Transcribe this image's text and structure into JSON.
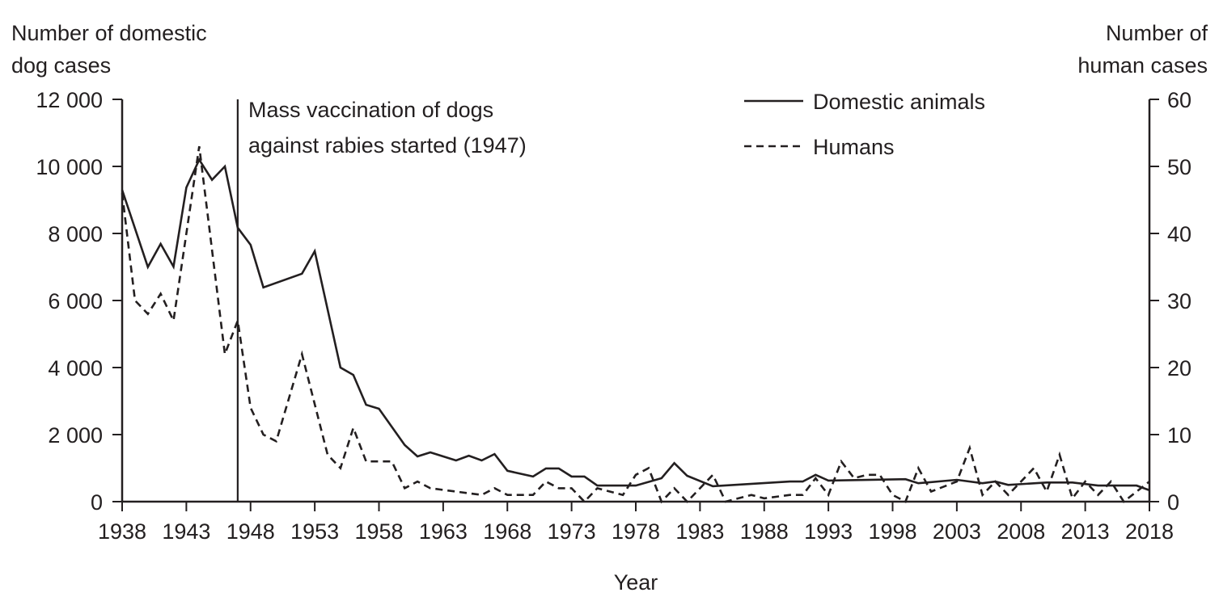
{
  "chart_data": {
    "type": "line",
    "xlabel": "Year",
    "ylabel_left": [
      "Number of domestic",
      "dog cases"
    ],
    "ylabel_right": [
      "Number of",
      "human cases"
    ],
    "xlim": [
      1938,
      2018
    ],
    "ylim_left": [
      0,
      12000
    ],
    "ylim_right": [
      0,
      60
    ],
    "x_ticks": [
      "1938",
      "1943",
      "1948",
      "1953",
      "1958",
      "1963",
      "1968",
      "1973",
      "1978",
      "1983",
      "1988",
      "1993",
      "1998",
      "2003",
      "2008",
      "2013",
      "2018"
    ],
    "y_ticks_left": [
      "0",
      "2 000",
      "4 000",
      "6 000",
      "8 000",
      "10 000",
      "12 000"
    ],
    "y_ticks_right": [
      "0",
      "10",
      "20",
      "30",
      "40",
      "50",
      "60"
    ],
    "grid": false,
    "legend_position": "top-right",
    "colors": {
      "line": "#231f20"
    },
    "annotation": {
      "x": 1947,
      "text": [
        "Mass vaccination of dogs",
        "against rabies started (1947)"
      ]
    },
    "series": [
      {
        "name": "Domestic animals",
        "axis": "left",
        "style": "solid",
        "points": [
          [
            1938,
            9300
          ],
          [
            1940,
            7000
          ],
          [
            1941,
            7690
          ],
          [
            1942,
            7010
          ],
          [
            1943,
            9370
          ],
          [
            1944,
            10200
          ],
          [
            1945,
            9600
          ],
          [
            1946,
            10000
          ],
          [
            1947,
            8170
          ],
          [
            1948,
            7660
          ],
          [
            1949,
            6390
          ],
          [
            1952,
            6800
          ],
          [
            1953,
            7470
          ],
          [
            1955,
            4000
          ],
          [
            1956,
            3780
          ],
          [
            1957,
            2890
          ],
          [
            1958,
            2770
          ],
          [
            1960,
            1690
          ],
          [
            1961,
            1350
          ],
          [
            1962,
            1470
          ],
          [
            1964,
            1230
          ],
          [
            1965,
            1370
          ],
          [
            1966,
            1230
          ],
          [
            1967,
            1420
          ],
          [
            1968,
            920
          ],
          [
            1970,
            750
          ],
          [
            1971,
            990
          ],
          [
            1972,
            990
          ],
          [
            1973,
            750
          ],
          [
            1974,
            750
          ],
          [
            1975,
            480
          ],
          [
            1978,
            480
          ],
          [
            1980,
            700
          ],
          [
            1981,
            1150
          ],
          [
            1982,
            770
          ],
          [
            1984,
            460
          ],
          [
            1990,
            600
          ],
          [
            1991,
            600
          ],
          [
            1992,
            800
          ],
          [
            1993,
            630
          ],
          [
            1999,
            670
          ],
          [
            2000,
            550
          ],
          [
            2003,
            650
          ],
          [
            2005,
            550
          ],
          [
            2006,
            600
          ],
          [
            2007,
            500
          ],
          [
            2010,
            570
          ],
          [
            2012,
            570
          ],
          [
            2014,
            480
          ],
          [
            2017,
            480
          ],
          [
            2018,
            340
          ]
        ]
      },
      {
        "name": "Humans",
        "axis": "right",
        "style": "dashed",
        "points": [
          [
            1938,
            46
          ],
          [
            1939,
            30
          ],
          [
            1940,
            28
          ],
          [
            1941,
            31
          ],
          [
            1942,
            27
          ],
          [
            1944,
            53
          ],
          [
            1946,
            22
          ],
          [
            1947,
            27
          ],
          [
            1948,
            14
          ],
          [
            1949,
            10
          ],
          [
            1950,
            9
          ],
          [
            1952,
            22
          ],
          [
            1954,
            7
          ],
          [
            1955,
            5
          ],
          [
            1956,
            11
          ],
          [
            1957,
            6
          ],
          [
            1959,
            6
          ],
          [
            1960,
            2
          ],
          [
            1961,
            3
          ],
          [
            1962,
            2
          ],
          [
            1966,
            1
          ],
          [
            1967,
            2
          ],
          [
            1968,
            1
          ],
          [
            1970,
            1
          ],
          [
            1971,
            3
          ],
          [
            1972,
            2
          ],
          [
            1973,
            2
          ],
          [
            1974,
            0
          ],
          [
            1975,
            2
          ],
          [
            1977,
            1
          ],
          [
            1978,
            4
          ],
          [
            1979,
            5
          ],
          [
            1980,
            0
          ],
          [
            1981,
            2
          ],
          [
            1982,
            0
          ],
          [
            1984,
            4
          ],
          [
            1985,
            0
          ],
          [
            1987,
            1
          ],
          [
            1988,
            0.5
          ],
          [
            1990,
            1
          ],
          [
            1991,
            1
          ],
          [
            1992,
            3.5
          ],
          [
            1993,
            1
          ],
          [
            1994,
            6
          ],
          [
            1995,
            3.5
          ],
          [
            1996,
            4
          ],
          [
            1997,
            4
          ],
          [
            1998,
            1
          ],
          [
            1999,
            0
          ],
          [
            2000,
            5
          ],
          [
            2001,
            1.5
          ],
          [
            2003,
            3
          ],
          [
            2004,
            8
          ],
          [
            2005,
            1
          ],
          [
            2006,
            3
          ],
          [
            2007,
            1
          ],
          [
            2009,
            5
          ],
          [
            2010,
            1.5
          ],
          [
            2011,
            7
          ],
          [
            2012,
            0.5
          ],
          [
            2013,
            3
          ],
          [
            2014,
            1
          ],
          [
            2015,
            3
          ],
          [
            2016,
            0
          ],
          [
            2018,
            3
          ]
        ]
      }
    ]
  }
}
